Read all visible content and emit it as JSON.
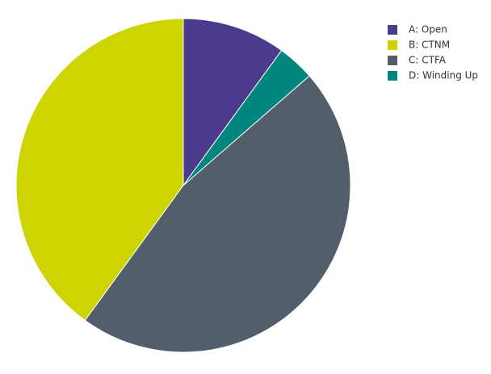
{
  "chart_data": {
    "type": "pie",
    "categories": [
      "A: Open",
      "B: CTNM",
      "C: CTFA",
      "D: Winding Up"
    ],
    "values": [
      10,
      40,
      46.4,
      3.6
    ],
    "colors": [
      "#4b3b8c",
      "#cdd400",
      "#525f6a",
      "#00867f"
    ],
    "start_angle": 36,
    "direction": "counterclockwise",
    "legend": "top-right"
  }
}
